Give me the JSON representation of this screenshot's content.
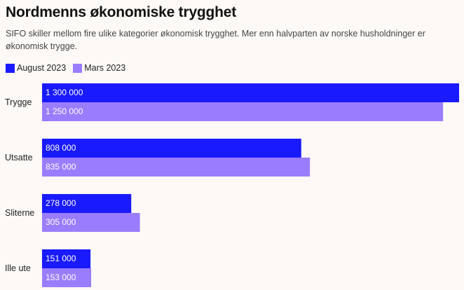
{
  "title": "Nordmenns økonomiske trygghet",
  "subtitle": "SIFO skiller mellom fire ulike kategorier økonomisk trygghet. Mer enn halvparten av norske husholdninger er økonomisk trygge.",
  "colors": {
    "series_0": "#1a1aff",
    "series_1": "#9a7cff",
    "background": "#fdf9f6"
  },
  "chart_data": {
    "type": "bar",
    "orientation": "horizontal",
    "categories": [
      "Trygge",
      "Utsatte",
      "Sliterne",
      "Ille ute"
    ],
    "series": [
      {
        "name": "August 2023",
        "values": [
          1300000,
          808000,
          278000,
          151000
        ],
        "labels": [
          "1 300 000",
          "808 000",
          "278 000",
          "151 000"
        ]
      },
      {
        "name": "Mars 2023",
        "values": [
          1250000,
          835000,
          305000,
          153000
        ],
        "labels": [
          "1 250 000",
          "835 000",
          "305 000",
          "153 000"
        ]
      }
    ],
    "xlim": [
      0,
      1300000
    ],
    "legend": "top-left",
    "grid": false
  }
}
